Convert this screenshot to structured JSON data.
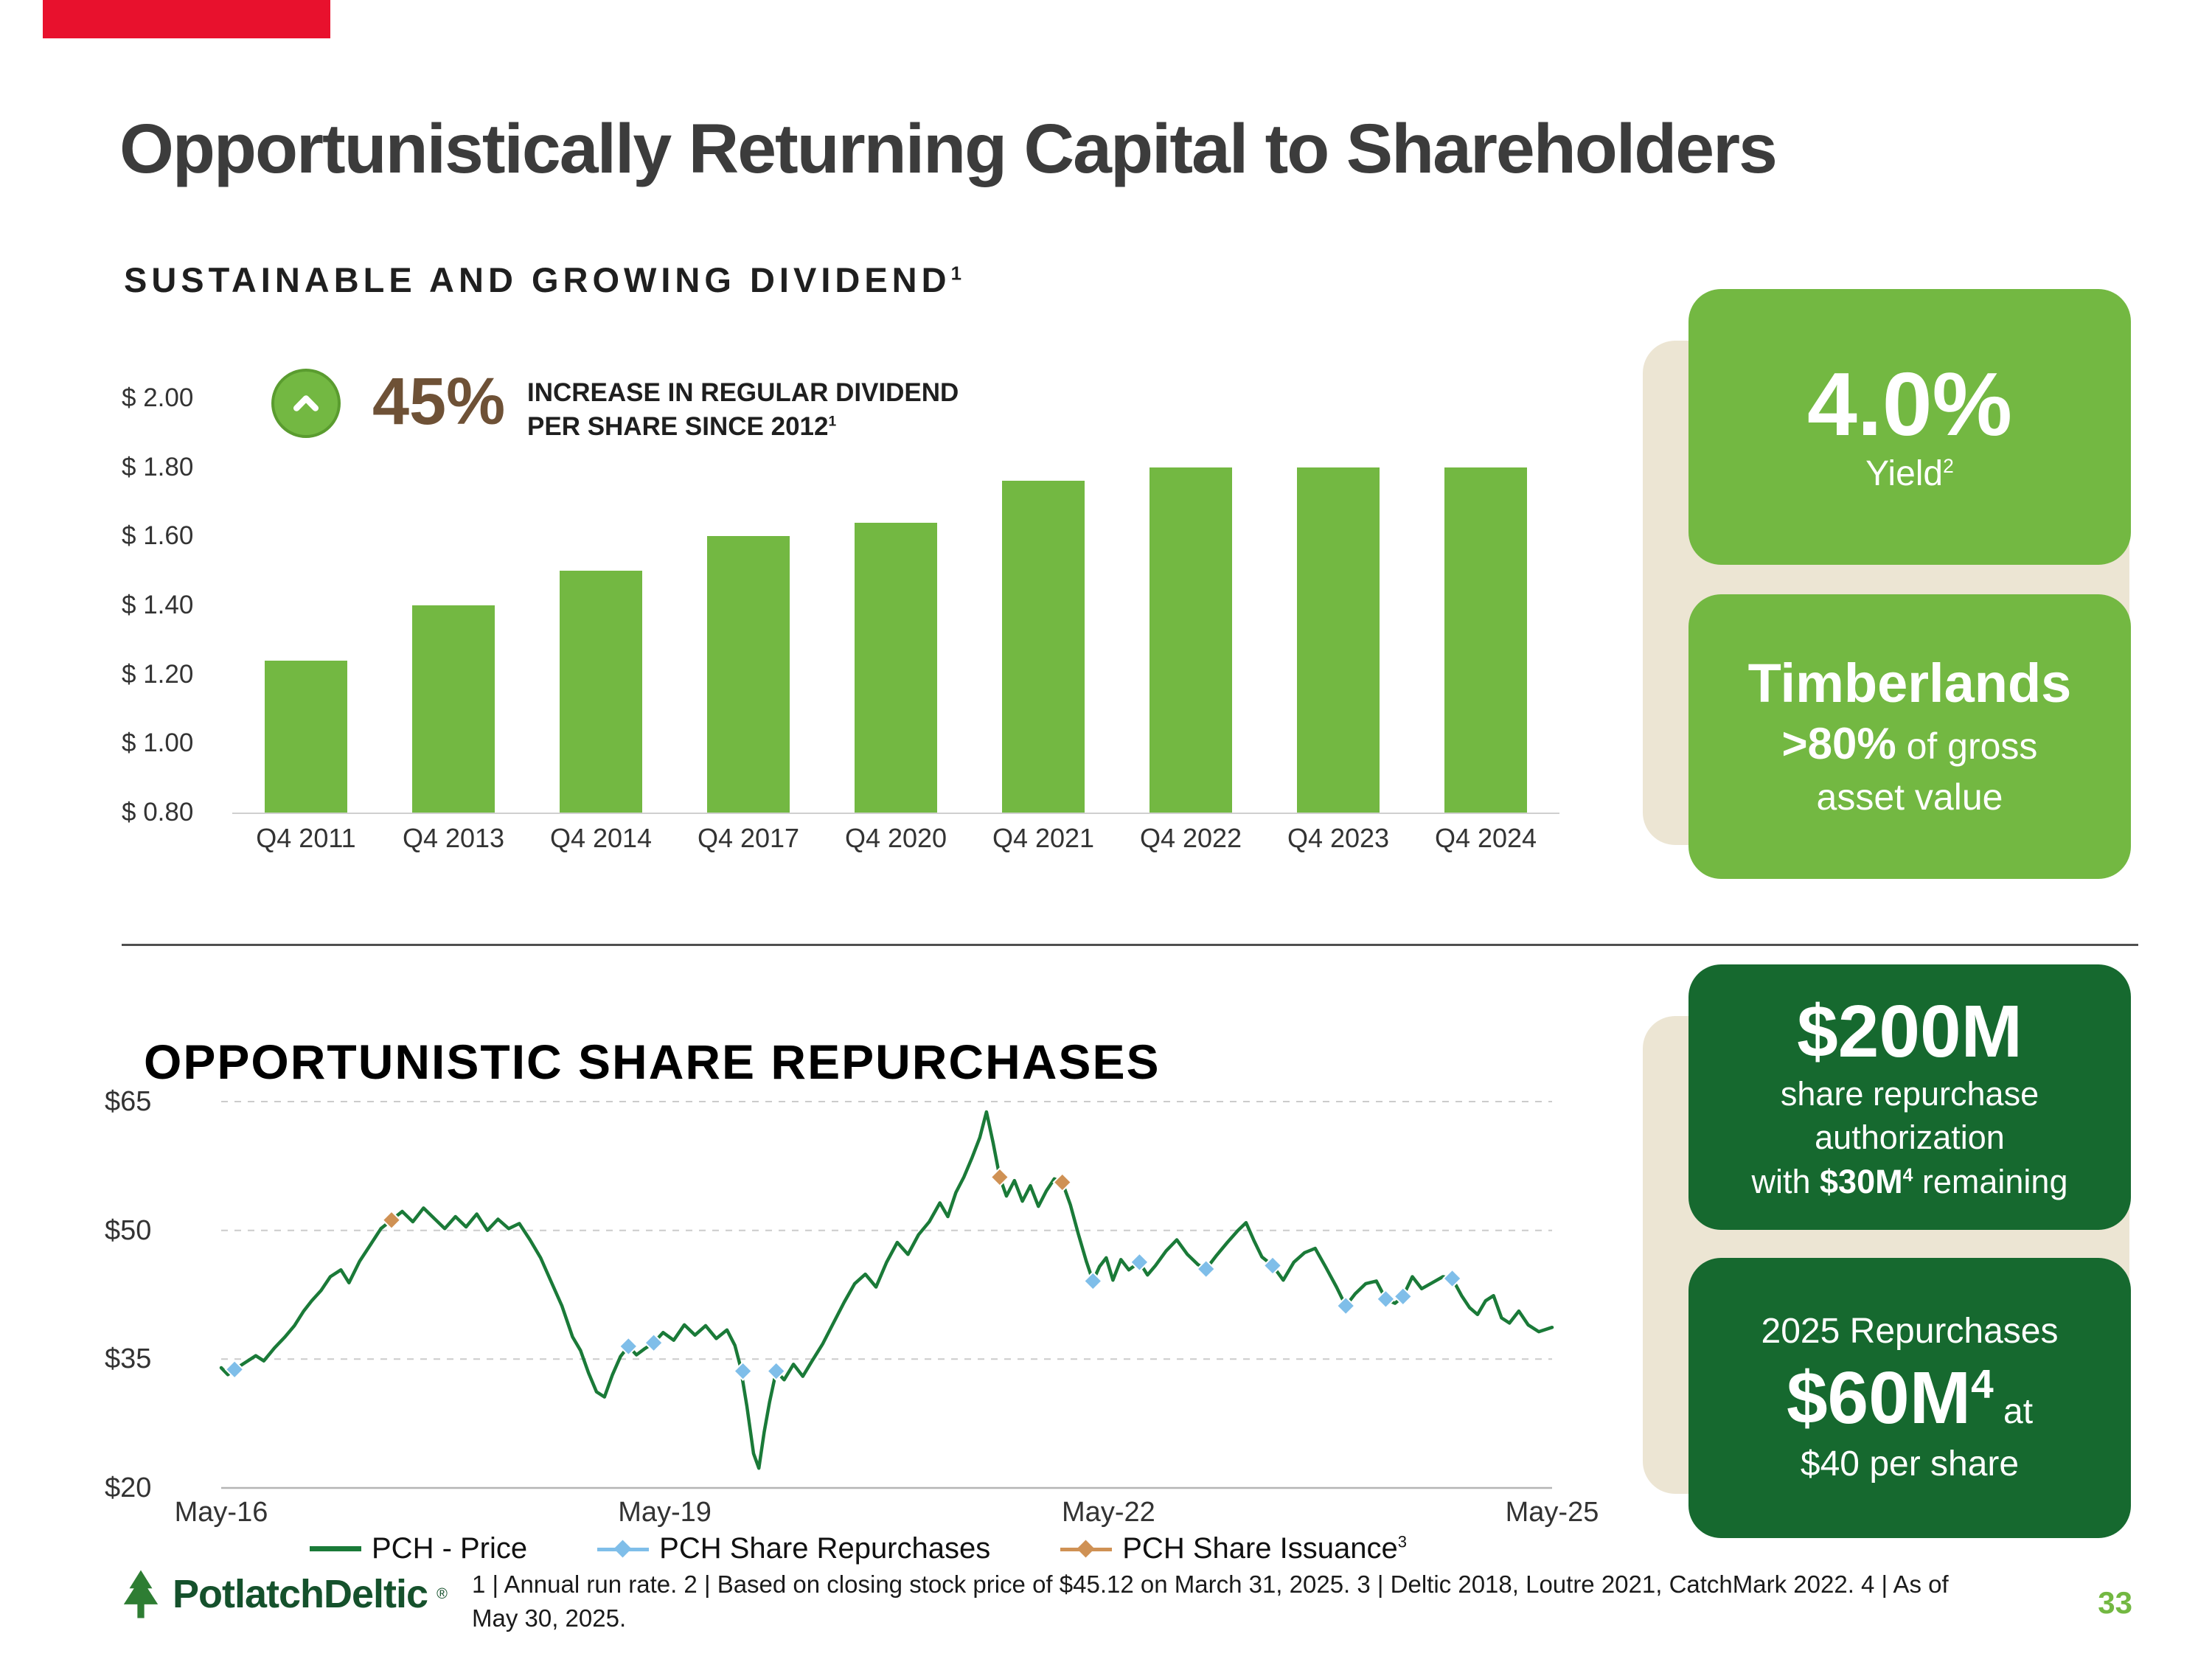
{
  "colors": {
    "brand_green": "#73b842",
    "dark_green": "#16692f",
    "beige": "#ece5d3",
    "red": "#e8112d",
    "brown": "#6e5136",
    "line_green": "#1a7a38",
    "marker_blue": "#7fbee9",
    "marker_tan": "#cf9154"
  },
  "header": {
    "title": "Opportunistically Returning Capital to Shareholders"
  },
  "dividend_section": {
    "heading": "SUSTAINABLE AND GROWING DIVIDEND",
    "heading_sup": "1",
    "badge": {
      "pct": "45%",
      "line1": "INCREASE IN REGULAR DIVIDEND",
      "line2": "PER SHARE SINCE 2012",
      "line2_sup": "1"
    },
    "cards": {
      "yield": {
        "value": "4.0%",
        "label": "Yield",
        "label_sup": "2"
      },
      "timberlands": {
        "title": "Timberlands",
        "bold_pct": ">80%",
        "rest1": " of gross",
        "rest2": "asset value"
      }
    }
  },
  "repurchase_section": {
    "heading": "OPPORTUNISTIC SHARE REPURCHASES",
    "cards": {
      "authorization": {
        "value": "$200M",
        "line1": "share repurchase",
        "line2": "authorization",
        "line3_pre": "with ",
        "line3_bold": "$30M",
        "line3_sup": "4",
        "line3_post": " remaining"
      },
      "repurchases2025": {
        "title": "2025 Repurchases",
        "value": "$60M",
        "value_sup": "4",
        "suffix": " at",
        "line2": "$40 per share"
      }
    }
  },
  "chart_data": [
    {
      "type": "bar",
      "title": "SUSTAINABLE AND GROWING DIVIDEND (regular dividend per share, annual run rate)",
      "categories": [
        "Q4 2011",
        "Q4 2013",
        "Q4 2014",
        "Q4 2017",
        "Q4 2020",
        "Q4 2021",
        "Q4 2022",
        "Q4 2023",
        "Q4 2024"
      ],
      "values": [
        1.24,
        1.4,
        1.5,
        1.6,
        1.64,
        1.76,
        1.8,
        1.8,
        1.8
      ],
      "y_ticks": [
        "$ 2.00",
        "$ 1.80",
        "$ 1.60",
        "$ 1.40",
        "$ 1.20",
        "$ 1.00",
        "$ 0.80"
      ],
      "y_tick_values": [
        2.0,
        1.8,
        1.6,
        1.4,
        1.2,
        1.0,
        0.8
      ],
      "y_min": 0.8,
      "y_max": 2.0,
      "grid": false,
      "bar_color": "#73b842"
    },
    {
      "type": "line",
      "title": "OPPORTUNISTIC SHARE REPURCHASES (PCH stock price, May-16 to May-25)",
      "x_ticks": [
        "May-16",
        "May-19",
        "May-22",
        "May-25"
      ],
      "x_tick_pos": [
        0,
        0.3333,
        0.6667,
        1
      ],
      "y_ticks": [
        "$65",
        "$50",
        "$35",
        "$20"
      ],
      "y_tick_values": [
        65,
        50,
        35,
        20
      ],
      "y_min": 20,
      "y_max": 65,
      "grid": true,
      "legend_position": "bottom",
      "series": [
        {
          "name": "PCH - Price",
          "type": "line",
          "color": "#1a7a38",
          "points": [
            [
              0.0,
              34.0
            ],
            [
              0.005,
              33.2
            ],
            [
              0.01,
              33.8
            ],
            [
              0.018,
              34.6
            ],
            [
              0.026,
              35.4
            ],
            [
              0.032,
              34.8
            ],
            [
              0.04,
              36.3
            ],
            [
              0.048,
              37.6
            ],
            [
              0.055,
              38.9
            ],
            [
              0.062,
              40.6
            ],
            [
              0.068,
              41.8
            ],
            [
              0.075,
              43.0
            ],
            [
              0.082,
              44.6
            ],
            [
              0.09,
              45.4
            ],
            [
              0.096,
              43.9
            ],
            [
              0.104,
              46.4
            ],
            [
              0.112,
              48.3
            ],
            [
              0.12,
              50.2
            ],
            [
              0.128,
              51.2
            ],
            [
              0.136,
              52.2
            ],
            [
              0.144,
              51.0
            ],
            [
              0.152,
              52.6
            ],
            [
              0.16,
              51.4
            ],
            [
              0.168,
              50.2
            ],
            [
              0.176,
              51.6
            ],
            [
              0.184,
              50.4
            ],
            [
              0.192,
              51.9
            ],
            [
              0.2,
              50.0
            ],
            [
              0.208,
              51.3
            ],
            [
              0.216,
              50.2
            ],
            [
              0.224,
              50.8
            ],
            [
              0.232,
              48.9
            ],
            [
              0.24,
              46.8
            ],
            [
              0.248,
              44.0
            ],
            [
              0.256,
              41.2
            ],
            [
              0.264,
              37.6
            ],
            [
              0.27,
              36.0
            ],
            [
              0.276,
              33.4
            ],
            [
              0.282,
              31.2
            ],
            [
              0.288,
              30.6
            ],
            [
              0.294,
              33.2
            ],
            [
              0.3,
              35.3
            ],
            [
              0.306,
              36.5
            ],
            [
              0.312,
              35.5
            ],
            [
              0.318,
              36.2
            ],
            [
              0.325,
              36.9
            ],
            [
              0.332,
              38.1
            ],
            [
              0.34,
              37.2
            ],
            [
              0.348,
              39.0
            ],
            [
              0.356,
              37.8
            ],
            [
              0.364,
              38.9
            ],
            [
              0.372,
              37.4
            ],
            [
              0.38,
              38.4
            ],
            [
              0.386,
              36.6
            ],
            [
              0.39,
              34.2
            ],
            [
              0.395,
              29.5
            ],
            [
              0.4,
              24.0
            ],
            [
              0.404,
              22.3
            ],
            [
              0.408,
              26.5
            ],
            [
              0.412,
              30.0
            ],
            [
              0.417,
              33.6
            ],
            [
              0.423,
              32.6
            ],
            [
              0.43,
              34.4
            ],
            [
              0.437,
              33.0
            ],
            [
              0.444,
              34.8
            ],
            [
              0.452,
              36.8
            ],
            [
              0.46,
              39.2
            ],
            [
              0.468,
              41.6
            ],
            [
              0.476,
              43.8
            ],
            [
              0.484,
              44.9
            ],
            [
              0.492,
              43.4
            ],
            [
              0.5,
              46.3
            ],
            [
              0.508,
              48.6
            ],
            [
              0.516,
              47.2
            ],
            [
              0.524,
              49.5
            ],
            [
              0.532,
              51.0
            ],
            [
              0.54,
              53.2
            ],
            [
              0.546,
              51.6
            ],
            [
              0.552,
              54.4
            ],
            [
              0.558,
              56.2
            ],
            [
              0.564,
              58.4
            ],
            [
              0.57,
              60.8
            ],
            [
              0.575,
              63.8
            ],
            [
              0.58,
              60.2
            ],
            [
              0.585,
              56.2
            ],
            [
              0.59,
              54.0
            ],
            [
              0.596,
              55.8
            ],
            [
              0.602,
              53.4
            ],
            [
              0.608,
              55.2
            ],
            [
              0.614,
              52.8
            ],
            [
              0.62,
              54.6
            ],
            [
              0.626,
              56.0
            ],
            [
              0.632,
              55.6
            ],
            [
              0.638,
              53.0
            ],
            [
              0.644,
              49.6
            ],
            [
              0.65,
              46.4
            ],
            [
              0.655,
              44.1
            ],
            [
              0.66,
              45.8
            ],
            [
              0.665,
              46.8
            ],
            [
              0.67,
              44.2
            ],
            [
              0.676,
              46.6
            ],
            [
              0.682,
              45.4
            ],
            [
              0.69,
              46.3
            ],
            [
              0.696,
              44.8
            ],
            [
              0.702,
              45.9
            ],
            [
              0.71,
              47.6
            ],
            [
              0.718,
              48.9
            ],
            [
              0.726,
              47.2
            ],
            [
              0.734,
              46.0
            ],
            [
              0.74,
              45.5
            ],
            [
              0.748,
              47.1
            ],
            [
              0.756,
              48.6
            ],
            [
              0.764,
              50.0
            ],
            [
              0.77,
              50.9
            ],
            [
              0.776,
              48.8
            ],
            [
              0.782,
              46.9
            ],
            [
              0.79,
              45.9
            ],
            [
              0.798,
              44.2
            ],
            [
              0.806,
              46.3
            ],
            [
              0.814,
              47.4
            ],
            [
              0.822,
              47.9
            ],
            [
              0.83,
              45.7
            ],
            [
              0.838,
              43.4
            ],
            [
              0.845,
              41.2
            ],
            [
              0.852,
              42.6
            ],
            [
              0.86,
              43.8
            ],
            [
              0.868,
              44.1
            ],
            [
              0.875,
              42.0
            ],
            [
              0.882,
              41.5
            ],
            [
              0.888,
              42.3
            ],
            [
              0.895,
              44.6
            ],
            [
              0.902,
              43.2
            ],
            [
              0.91,
              43.9
            ],
            [
              0.918,
              44.6
            ],
            [
              0.925,
              44.4
            ],
            [
              0.932,
              42.4
            ],
            [
              0.938,
              41.0
            ],
            [
              0.944,
              40.2
            ],
            [
              0.95,
              41.8
            ],
            [
              0.956,
              42.4
            ],
            [
              0.962,
              39.8
            ],
            [
              0.968,
              39.2
            ],
            [
              0.975,
              40.6
            ],
            [
              0.982,
              39.0
            ],
            [
              0.99,
              38.2
            ],
            [
              1.0,
              38.7
            ]
          ]
        },
        {
          "name": "PCH Share Repurchases",
          "type": "markers",
          "color": "#7fbee9",
          "points": [
            [
              0.01,
              33.8
            ],
            [
              0.306,
              36.5
            ],
            [
              0.325,
              36.9
            ],
            [
              0.392,
              33.6
            ],
            [
              0.417,
              33.6
            ],
            [
              0.655,
              44.1
            ],
            [
              0.69,
              46.3
            ],
            [
              0.74,
              45.5
            ],
            [
              0.79,
              45.9
            ],
            [
              0.845,
              41.2
            ],
            [
              0.875,
              42.0
            ],
            [
              0.888,
              42.3
            ],
            [
              0.925,
              44.4
            ]
          ]
        },
        {
          "name": "PCH Share Issuance",
          "name_sup": "3",
          "type": "markers",
          "color": "#cf9154",
          "points": [
            [
              0.128,
              51.2
            ],
            [
              0.585,
              56.2
            ],
            [
              0.632,
              55.6
            ]
          ]
        }
      ]
    }
  ],
  "footer": {
    "logo_text": "PotlatchDeltic",
    "logo_mark": "®",
    "footnote_line1": "1 | Annual run rate.  2 | Based on closing stock price of $45.12 on March 31, 2025.  3 | Deltic 2018, Loutre 2021, CatchMark 2022.  4 | As of",
    "footnote_line2": "May 30, 2025.",
    "page": "33"
  }
}
